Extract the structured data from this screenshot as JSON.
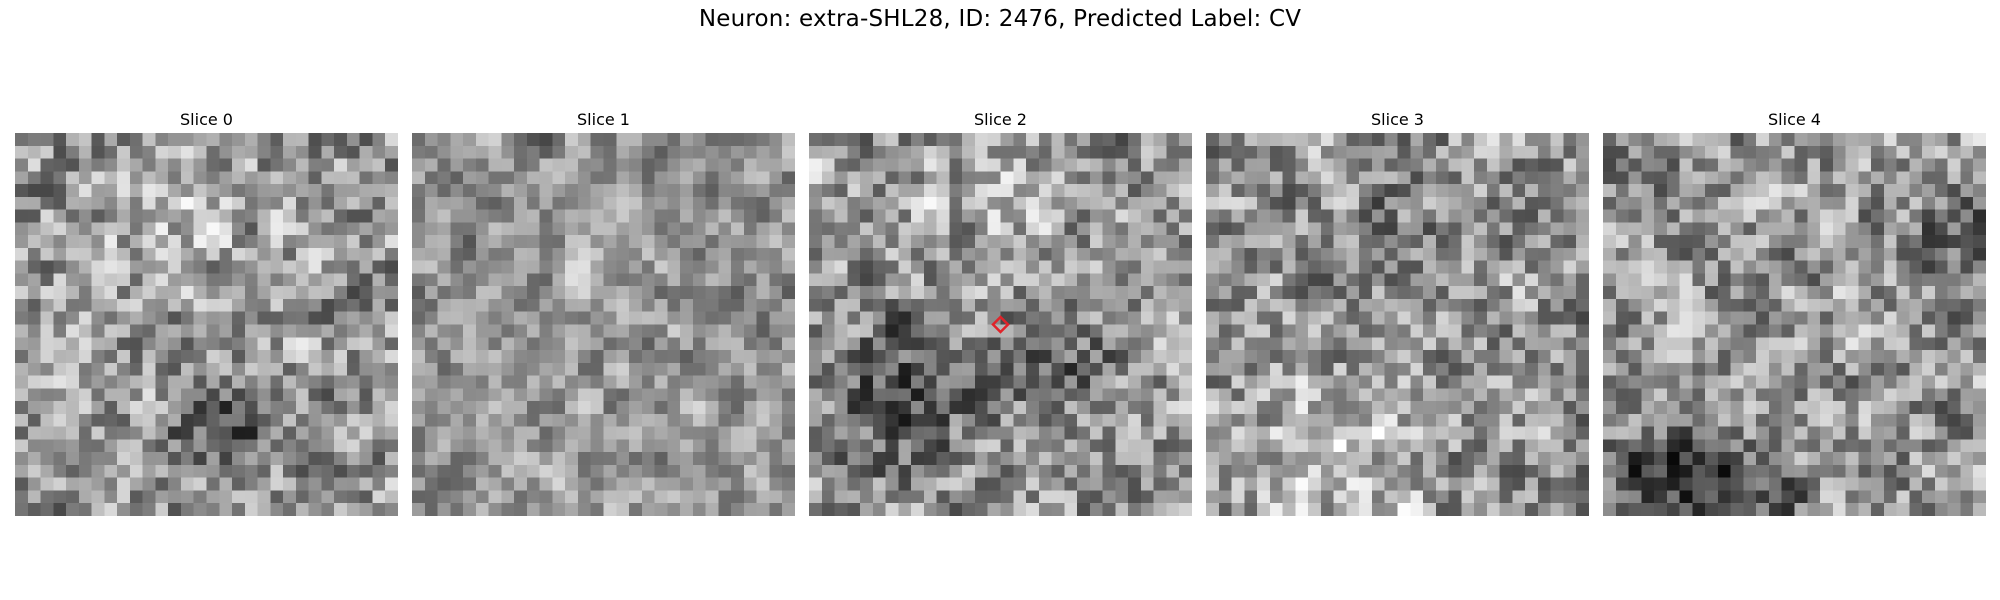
{
  "figure": {
    "title": "Neuron: extra-SHL28, ID: 2476, Predicted Label: CV"
  },
  "panels": [
    {
      "title": "Slice 0",
      "seed": 11,
      "blob": "dark-lower-center"
    },
    {
      "title": "Slice 1",
      "seed": 27,
      "blob": "noisy"
    },
    {
      "title": "Slice 2",
      "seed": 43,
      "blob": "dark-lower-left",
      "marker": true
    },
    {
      "title": "Slice 3",
      "seed": 59,
      "blob": "bright-lower"
    },
    {
      "title": "Slice 4",
      "seed": 71,
      "blob": "dark-bottom-left"
    }
  ],
  "grid_cells": 30,
  "marker_color": "#e0242a",
  "colormap": "gray"
}
